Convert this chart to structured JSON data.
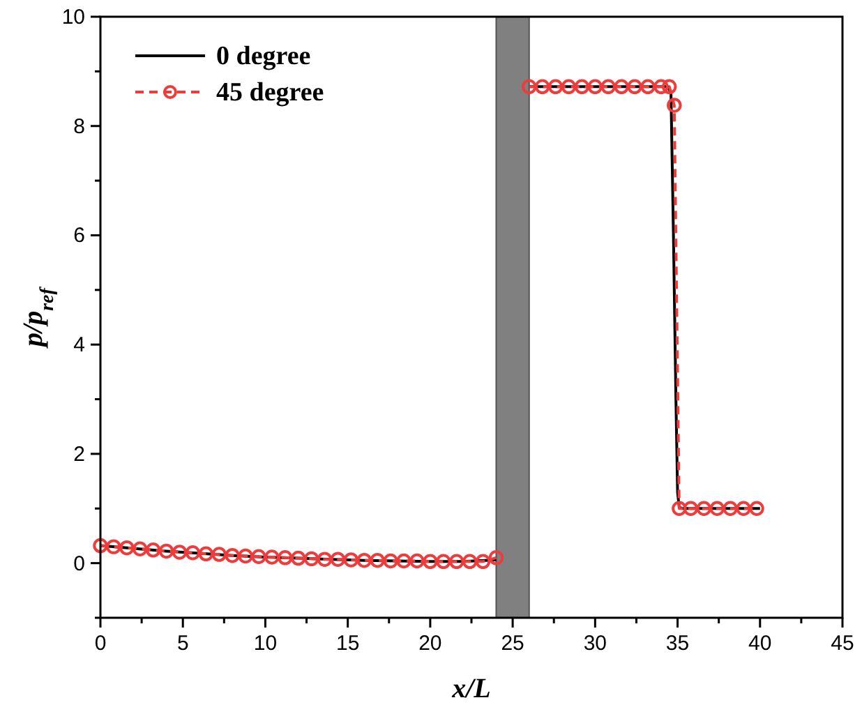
{
  "chart_data": {
    "type": "line",
    "xlabel": "x/L",
    "ylabel": "p/p$_{ref}$",
    "xlim": [
      0,
      45
    ],
    "xticks": [
      0,
      5,
      10,
      15,
      20,
      25,
      30,
      35,
      40,
      45
    ],
    "ylim": [
      -1,
      10
    ],
    "yticks": [
      0,
      2,
      4,
      6,
      8,
      10
    ],
    "legend": "top left",
    "grid": false,
    "bands": [
      {
        "axis": "x",
        "from": 24,
        "to": 26,
        "color": "#808080"
      }
    ],
    "series": [
      {
        "name": "0 degree",
        "color": "#000000",
        "line_style": "solid",
        "marker": "none",
        "x": [
          0,
          2,
          4,
          6,
          8,
          10,
          12,
          14,
          16,
          18,
          20,
          22,
          24,
          25,
          26,
          28,
          30,
          32,
          34,
          34.4,
          34.6,
          34.75,
          34.9,
          35.0,
          35.1,
          35.3,
          36,
          38,
          40
        ],
        "values": [
          0.32,
          0.27,
          0.22,
          0.18,
          0.14,
          0.11,
          0.09,
          0.07,
          0.05,
          0.04,
          0.03,
          0.03,
          0.06,
          null,
          8.72,
          8.72,
          8.72,
          8.72,
          8.72,
          8.72,
          8.6,
          6,
          3,
          1.3,
          1.02,
          1.0,
          1.0,
          1.0,
          1.0
        ]
      },
      {
        "name": "45 degree",
        "color": "#ee3b3b",
        "line_style": "dashed",
        "marker": "circle",
        "x": [
          0,
          0.8,
          1.6,
          2.4,
          3.2,
          4,
          4.8,
          5.6,
          6.4,
          7.2,
          8,
          8.8,
          9.6,
          10.4,
          11.2,
          12,
          12.8,
          13.6,
          14.4,
          15.2,
          16,
          16.8,
          17.6,
          18.4,
          19.2,
          20,
          20.8,
          21.6,
          22.4,
          23.2,
          24,
          25,
          26,
          26.8,
          27.6,
          28.4,
          29.2,
          30,
          30.8,
          31.6,
          32.4,
          33.2,
          34,
          34.5,
          34.8,
          35.1,
          35.8,
          36.6,
          37.4,
          38.2,
          39,
          39.8
        ],
        "values": [
          0.32,
          0.3,
          0.28,
          0.26,
          0.24,
          0.22,
          0.2,
          0.19,
          0.17,
          0.16,
          0.14,
          0.13,
          0.12,
          0.11,
          0.1,
          0.09,
          0.08,
          0.07,
          0.07,
          0.06,
          0.05,
          0.05,
          0.04,
          0.04,
          0.04,
          0.03,
          0.03,
          0.03,
          0.03,
          0.03,
          0.1,
          null,
          8.72,
          8.72,
          8.72,
          8.72,
          8.72,
          8.72,
          8.72,
          8.72,
          8.72,
          8.72,
          8.72,
          8.72,
          8.38,
          1.0,
          1.0,
          1.0,
          1.0,
          1.0,
          1.0,
          1.0
        ]
      }
    ]
  }
}
